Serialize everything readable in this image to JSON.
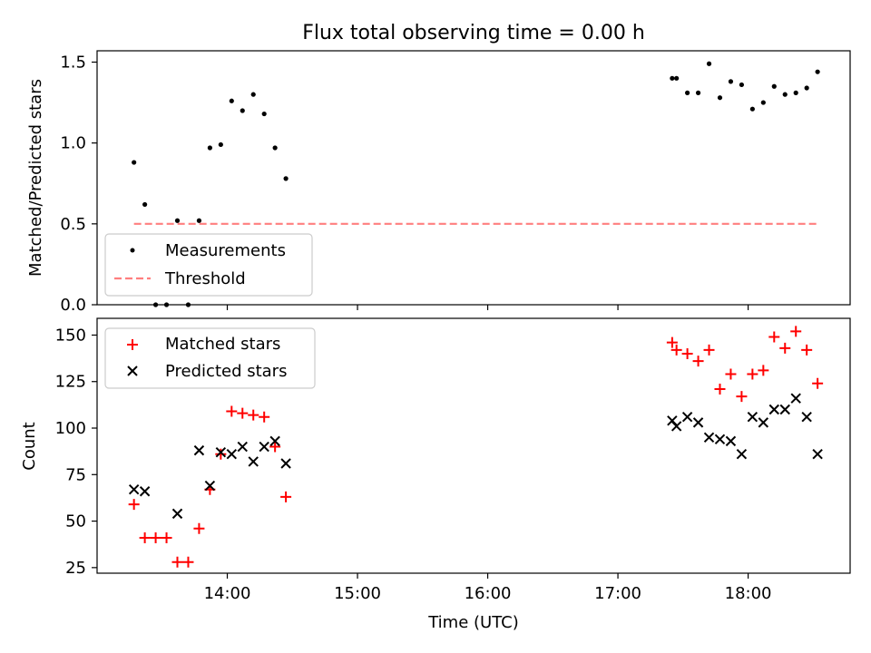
{
  "figure": {
    "title": "Flux total observing time = 0.00 h"
  },
  "chart_data": [
    {
      "type": "scatter",
      "panel": "top",
      "title": "Flux total observing time = 0.00 h",
      "xlabel": "",
      "ylabel": "Matched/Predicted stars",
      "ylim": [
        0,
        1.57
      ],
      "yticks": [
        0.0,
        0.5,
        1.0,
        1.5
      ],
      "ytick_labels": [
        "0.0",
        "0.5",
        "1.0",
        "1.5"
      ],
      "legend_position": "lower-left",
      "series": [
        {
          "name": "Measurements",
          "marker": "dot",
          "color": "#000000",
          "points": [
            [
              "13:17",
              0.88
            ],
            [
              "13:22",
              0.62
            ],
            [
              "13:27",
              0.0
            ],
            [
              "13:32",
              0.0
            ],
            [
              "13:37",
              0.52
            ],
            [
              "13:42",
              0.0
            ],
            [
              "13:47",
              0.52
            ],
            [
              "13:52",
              0.97
            ],
            [
              "13:57",
              0.99
            ],
            [
              "14:02",
              1.26
            ],
            [
              "14:07",
              1.2
            ],
            [
              "14:12",
              1.3
            ],
            [
              "14:17",
              1.18
            ],
            [
              "14:22",
              0.97
            ],
            [
              "14:27",
              0.78
            ],
            [
              "17:25",
              1.4
            ],
            [
              "17:27",
              1.4
            ],
            [
              "17:32",
              1.31
            ],
            [
              "17:37",
              1.31
            ],
            [
              "17:42",
              1.49
            ],
            [
              "17:47",
              1.28
            ],
            [
              "17:52",
              1.38
            ],
            [
              "17:57",
              1.36
            ],
            [
              "18:02",
              1.21
            ],
            [
              "18:07",
              1.25
            ],
            [
              "18:12",
              1.35
            ],
            [
              "18:17",
              1.3
            ],
            [
              "18:22",
              1.31
            ],
            [
              "18:27",
              1.34
            ],
            [
              "18:32",
              1.44
            ]
          ]
        },
        {
          "name": "Threshold",
          "line_style": "dashed",
          "color": "#ff7f7f",
          "points": [
            [
              "13:17",
              0.5
            ],
            [
              "18:32",
              0.5
            ]
          ]
        }
      ]
    },
    {
      "type": "scatter",
      "panel": "bottom",
      "xlabel": "Time (UTC)",
      "ylabel": "Count",
      "ylim": [
        22,
        159
      ],
      "yticks": [
        25,
        50,
        75,
        100,
        125,
        150
      ],
      "xlim": [
        "13:00",
        "18:47"
      ],
      "xticks": [
        "14:00",
        "15:00",
        "16:00",
        "17:00",
        "18:00"
      ],
      "legend_position": "upper-left",
      "series": [
        {
          "name": "Matched stars",
          "marker": "plus",
          "color": "#ff0000",
          "points": [
            [
              "13:17",
              59
            ],
            [
              "13:22",
              41
            ],
            [
              "13:27",
              41
            ],
            [
              "13:32",
              41
            ],
            [
              "13:37",
              28
            ],
            [
              "13:42",
              28
            ],
            [
              "13:47",
              46
            ],
            [
              "13:52",
              67
            ],
            [
              "13:57",
              86
            ],
            [
              "14:02",
              109
            ],
            [
              "14:07",
              108
            ],
            [
              "14:12",
              107
            ],
            [
              "14:17",
              106
            ],
            [
              "14:22",
              90
            ],
            [
              "14:27",
              63
            ],
            [
              "17:25",
              146
            ],
            [
              "17:27",
              142
            ],
            [
              "17:32",
              140
            ],
            [
              "17:37",
              136
            ],
            [
              "17:42",
              142
            ],
            [
              "17:47",
              121
            ],
            [
              "17:52",
              129
            ],
            [
              "17:57",
              117
            ],
            [
              "18:02",
              129
            ],
            [
              "18:07",
              131
            ],
            [
              "18:12",
              149
            ],
            [
              "18:17",
              143
            ],
            [
              "18:22",
              152
            ],
            [
              "18:27",
              142
            ],
            [
              "18:32",
              124
            ]
          ]
        },
        {
          "name": "Predicted stars",
          "marker": "x",
          "color": "#000000",
          "points": [
            [
              "13:17",
              67
            ],
            [
              "13:22",
              66
            ],
            [
              "13:37",
              54
            ],
            [
              "13:47",
              88
            ],
            [
              "13:52",
              69
            ],
            [
              "13:57",
              87
            ],
            [
              "14:02",
              86
            ],
            [
              "14:07",
              90
            ],
            [
              "14:12",
              82
            ],
            [
              "14:17",
              90
            ],
            [
              "14:22",
              93
            ],
            [
              "14:27",
              81
            ],
            [
              "17:25",
              104
            ],
            [
              "17:27",
              101
            ],
            [
              "17:32",
              106
            ],
            [
              "17:37",
              103
            ],
            [
              "17:42",
              95
            ],
            [
              "17:47",
              94
            ],
            [
              "17:52",
              93
            ],
            [
              "17:57",
              86
            ],
            [
              "18:02",
              106
            ],
            [
              "18:07",
              103
            ],
            [
              "18:12",
              110
            ],
            [
              "18:17",
              110
            ],
            [
              "18:22",
              116
            ],
            [
              "18:27",
              106
            ],
            [
              "18:32",
              86
            ]
          ]
        }
      ]
    }
  ]
}
